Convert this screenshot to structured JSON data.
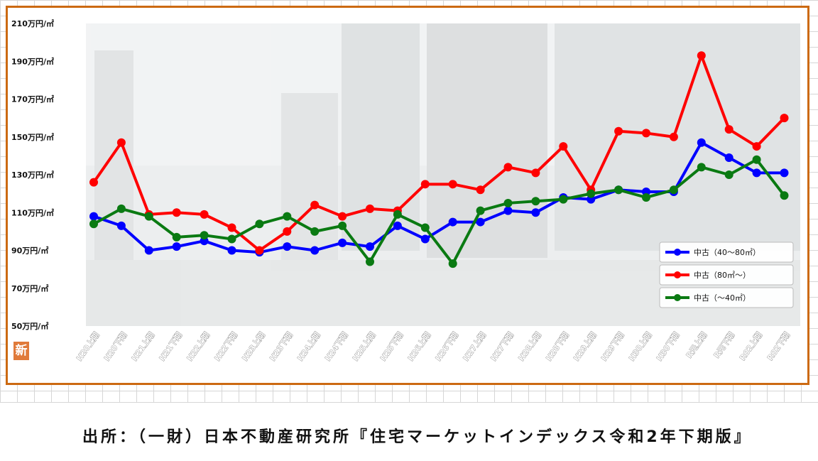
{
  "chart_data": {
    "type": "line",
    "title": "",
    "xlabel": "",
    "ylabel": "",
    "ylim": [
      50,
      210
    ],
    "y_ticks": [
      "210万円/㎡",
      "190万円/㎡",
      "170万円/㎡",
      "150万円/㎡",
      "130万円/㎡",
      "110万円/㎡",
      "90万円/㎡",
      "70万円/㎡",
      "50万円/㎡"
    ],
    "y_tick_values": [
      210,
      190,
      170,
      150,
      130,
      110,
      90,
      70,
      50
    ],
    "categories": [
      "H20上期",
      "H20下期",
      "H21上期",
      "H21下期",
      "H22上期",
      "H22下期",
      "H23上期",
      "H23下期",
      "H24上期",
      "H24下期",
      "H25上期",
      "H25下期",
      "H26上期",
      "H26下期",
      "H27上期",
      "H27下期",
      "H28上期",
      "H28下期",
      "H29上期",
      "H29下期",
      "H30上期",
      "H30下期",
      "R元上期",
      "R元下期",
      "R02上期",
      "R02下期"
    ],
    "legend_position": "bottom-right",
    "grid": false,
    "series": [
      {
        "name": "中古（40～80㎡）",
        "color": "#0000ff",
        "values": [
          108,
          103,
          90,
          92,
          95,
          90,
          89,
          92,
          90,
          94,
          92,
          103,
          96,
          105,
          105,
          111,
          110,
          118,
          117,
          122,
          121,
          121,
          147,
          139,
          131,
          131
        ]
      },
      {
        "name": "中古（80㎡～）",
        "color": "#ff0000",
        "values": [
          126,
          147,
          109,
          110,
          109,
          102,
          90,
          100,
          114,
          108,
          112,
          111,
          125,
          125,
          122,
          134,
          131,
          145,
          122,
          153,
          152,
          150,
          193,
          154,
          145,
          160
        ]
      },
      {
        "name": "中古（～40㎡）",
        "color": "#0a7a12",
        "values": [
          104,
          112,
          108,
          97,
          98,
          96,
          104,
          108,
          100,
          103,
          84,
          109,
          102,
          83,
          111,
          115,
          116,
          117,
          120,
          122,
          118,
          122,
          134,
          130,
          138,
          119
        ]
      }
    ]
  },
  "badge": {
    "label": "新"
  },
  "source": {
    "text": "出所：（一財）日本不動産研究所『住宅マーケットインデックス令和2年下期版』"
  }
}
